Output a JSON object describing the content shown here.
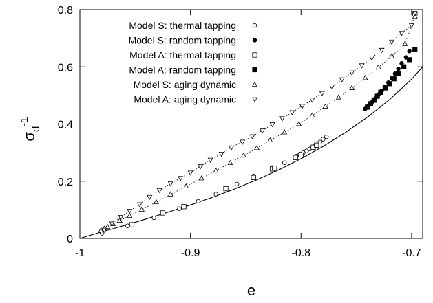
{
  "chart_data": {
    "type": "scatter",
    "xlabel": "e",
    "ylabel": {
      "base": "σ",
      "sub": "d",
      "sup": "-1"
    },
    "xlim": [
      -1.0,
      -0.69
    ],
    "ylim": [
      0,
      0.8
    ],
    "xticks": [
      "-1",
      "-0.9",
      "-0.8",
      "-0.7"
    ],
    "yticks": [
      "0",
      "0.2",
      "0.4",
      "0.6",
      "0.8"
    ],
    "grid": false,
    "legend_position": "top-left",
    "series": [
      {
        "name": "Model S: thermal tapping",
        "marker": "open-circle",
        "x": [
          -0.98,
          -0.957,
          -0.933,
          -0.91,
          -0.893,
          -0.877,
          -0.858,
          -0.843,
          -0.826,
          -0.815,
          -0.804,
          -0.801,
          -0.798,
          -0.795,
          -0.792,
          -0.787,
          -0.783,
          -0.78,
          -0.777
        ],
        "y": [
          0.018,
          0.044,
          0.072,
          0.104,
          0.13,
          0.155,
          0.19,
          0.218,
          0.248,
          0.265,
          0.288,
          0.295,
          0.3,
          0.306,
          0.313,
          0.325,
          0.337,
          0.347,
          0.355
        ]
      },
      {
        "name": "Model S: random tapping",
        "marker": "filled-circle",
        "x": [
          -0.742,
          -0.739,
          -0.736,
          -0.733,
          -0.73,
          -0.727,
          -0.724,
          -0.721,
          -0.718,
          -0.715,
          -0.712,
          -0.709,
          -0.705,
          -0.702
        ],
        "y": [
          0.453,
          0.464,
          0.476,
          0.489,
          0.503,
          0.516,
          0.53,
          0.545,
          0.56,
          0.576,
          0.593,
          0.612,
          0.633,
          0.655
        ]
      },
      {
        "name": "Model A: thermal tapping",
        "marker": "open-square",
        "x": [
          -0.953,
          -0.925,
          -0.906,
          -0.868,
          -0.843,
          -0.826,
          -0.824,
          -0.805,
          -0.8,
          -0.789,
          -0.786
        ],
        "y": [
          0.048,
          0.089,
          0.111,
          0.174,
          0.213,
          0.243,
          0.246,
          0.283,
          0.292,
          0.319,
          0.326
        ],
        "extra_points": [
          [
            -0.697,
            0.785
          ]
        ]
      },
      {
        "name": "Model A: random tapping",
        "marker": "filled-square",
        "x": [
          -0.74,
          -0.737,
          -0.734,
          -0.731,
          -0.728,
          -0.724,
          -0.72,
          -0.716,
          -0.712,
          -0.707,
          -0.702,
          -0.697
        ],
        "y": [
          0.459,
          0.471,
          0.483,
          0.497,
          0.511,
          0.526,
          0.541,
          0.558,
          0.577,
          0.6,
          0.625,
          0.66
        ]
      },
      {
        "name": "Model S: aging dynamic",
        "marker": "open-triangle-up",
        "line": "dotted",
        "x": [
          -0.981,
          -0.978,
          -0.975,
          -0.97,
          -0.964,
          -0.955,
          -0.944,
          -0.931,
          -0.918,
          -0.904,
          -0.89,
          -0.877,
          -0.864,
          -0.852,
          -0.84,
          -0.828,
          -0.815,
          -0.802,
          -0.79,
          -0.778,
          -0.766,
          -0.754,
          -0.742,
          -0.73,
          -0.718,
          -0.706,
          -0.697
        ],
        "y": [
          0.028,
          0.034,
          0.04,
          0.05,
          0.062,
          0.079,
          0.101,
          0.127,
          0.154,
          0.182,
          0.21,
          0.237,
          0.264,
          0.29,
          0.316,
          0.343,
          0.371,
          0.4,
          0.43,
          0.461,
          0.493,
          0.526,
          0.561,
          0.598,
          0.637,
          0.68,
          0.775
        ]
      },
      {
        "name": "Model A: aging dynamic",
        "marker": "open-triangle-down",
        "line": "dotted",
        "x": [
          -0.978,
          -0.971,
          -0.963,
          -0.955,
          -0.946,
          -0.937,
          -0.928,
          -0.918,
          -0.909,
          -0.9,
          -0.891,
          -0.882,
          -0.872,
          -0.863,
          -0.853,
          -0.844,
          -0.835,
          -0.826,
          -0.817,
          -0.808,
          -0.799,
          -0.79,
          -0.781,
          -0.772,
          -0.763,
          -0.754,
          -0.745,
          -0.736,
          -0.727,
          -0.718,
          -0.709,
          -0.7,
          -0.697
        ],
        "y": [
          0.03,
          0.052,
          0.075,
          0.096,
          0.119,
          0.145,
          0.169,
          0.192,
          0.211,
          0.23,
          0.252,
          0.275,
          0.296,
          0.318,
          0.338,
          0.357,
          0.377,
          0.399,
          0.42,
          0.441,
          0.463,
          0.485,
          0.508,
          0.531,
          0.556,
          0.58,
          0.605,
          0.632,
          0.659,
          0.688,
          0.718,
          0.745,
          0.788
        ]
      }
    ],
    "fit_curve": {
      "style": "solid",
      "points": [
        [
          -1.0,
          0.0
        ],
        [
          -0.98,
          0.023
        ],
        [
          -0.96,
          0.045
        ],
        [
          -0.94,
          0.068
        ],
        [
          -0.92,
          0.092
        ],
        [
          -0.9,
          0.117
        ],
        [
          -0.88,
          0.144
        ],
        [
          -0.86,
          0.173
        ],
        [
          -0.84,
          0.205
        ],
        [
          -0.82,
          0.24
        ],
        [
          -0.8,
          0.279
        ],
        [
          -0.78,
          0.322
        ],
        [
          -0.76,
          0.37
        ],
        [
          -0.74,
          0.424
        ],
        [
          -0.72,
          0.485
        ],
        [
          -0.7,
          0.557
        ],
        [
          -0.69,
          0.6
        ]
      ]
    }
  }
}
